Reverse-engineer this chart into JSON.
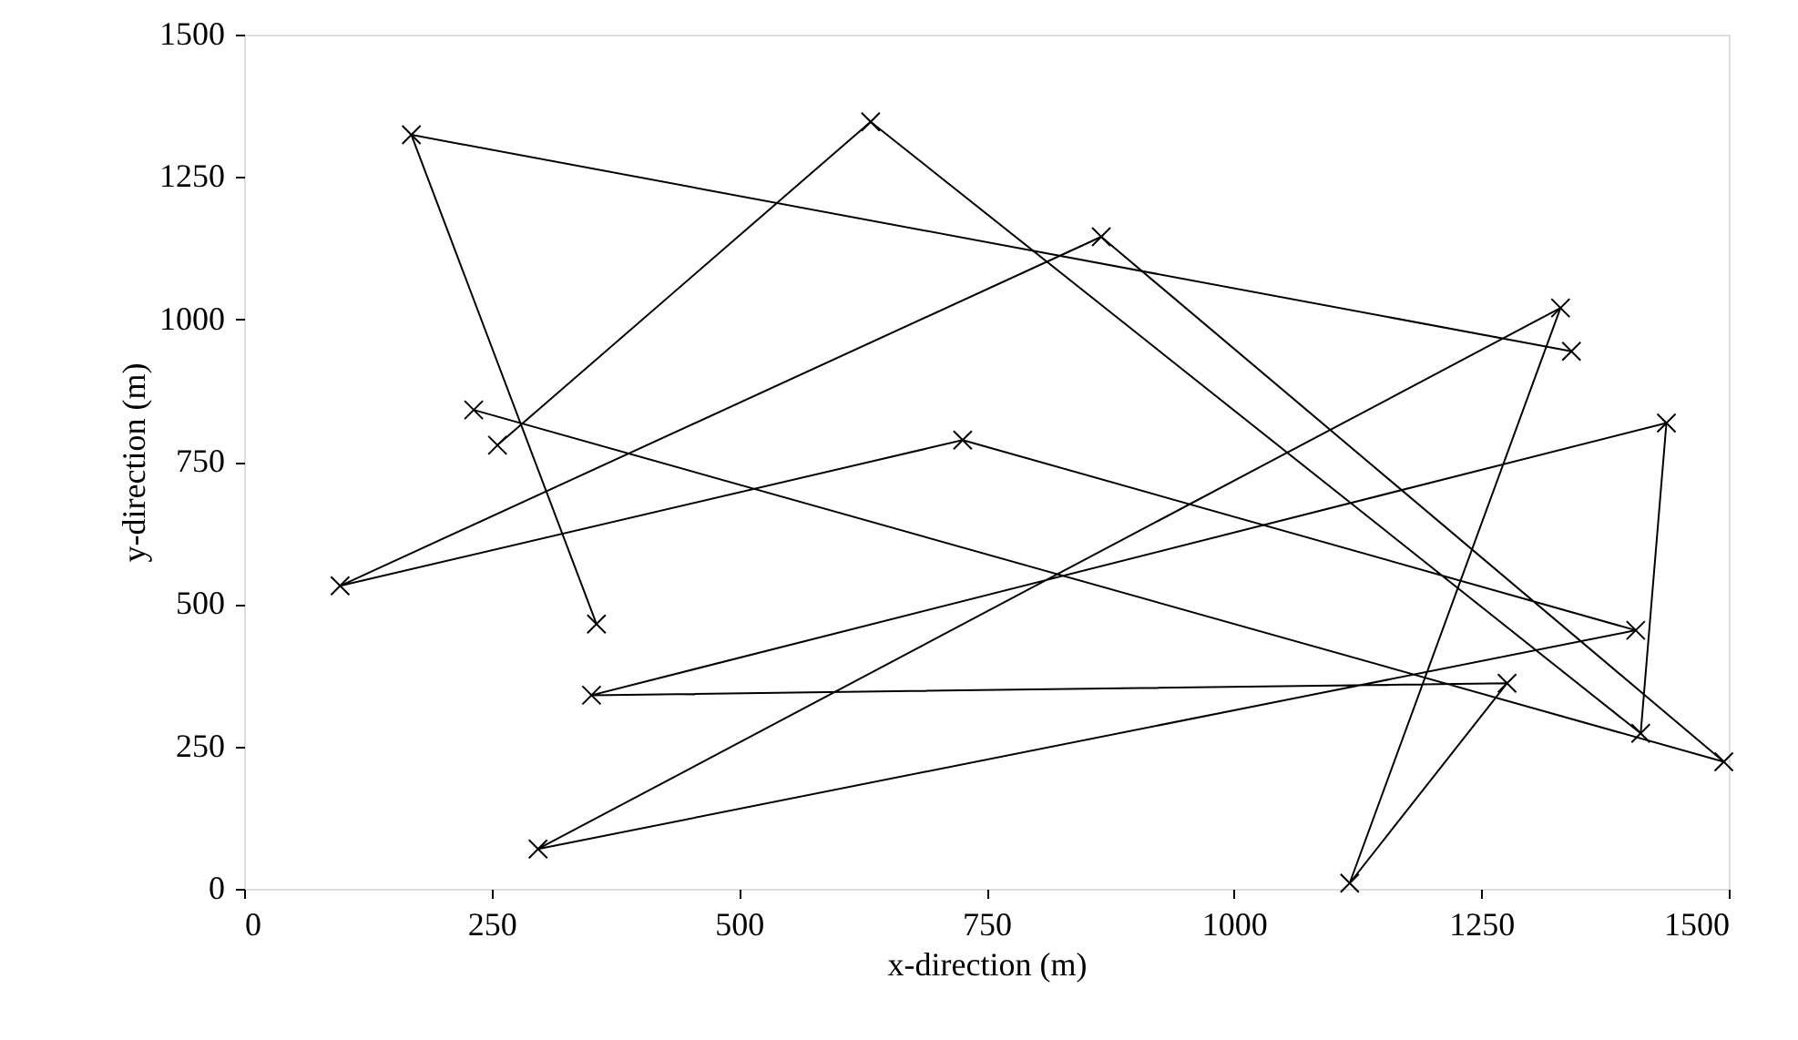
{
  "chart_data": {
    "type": "line",
    "xlabel": "x-direction (m)",
    "ylabel": "y-direction (m)",
    "xlim": [
      0,
      1500
    ],
    "xticks": [
      0,
      250,
      500,
      750,
      1000,
      1250,
      1500
    ],
    "ylim": [
      0,
      1500
    ],
    "yticks": [
      0,
      250,
      500,
      750,
      1000,
      1250,
      1500
    ],
    "grid": false,
    "marker": "cross",
    "line_style": "solid",
    "series": [
      {
        "color": "#000000",
        "x": [
          1341,
          169,
          356
        ],
        "values": [
          944,
          1324,
          465
        ]
      },
      {
        "color": "#000000",
        "x": [
          256,
          633,
          1411,
          1437,
          351,
          1276,
          1117,
          1330,
          297,
          1406,
          726,
          97,
          866,
          1495,
          232
        ],
        "values": [
          779,
          1347,
          273,
          818,
          340,
          361,
          10,
          1020,
          70,
          454,
          788,
          532,
          1145,
          223,
          841
        ]
      }
    ]
  }
}
